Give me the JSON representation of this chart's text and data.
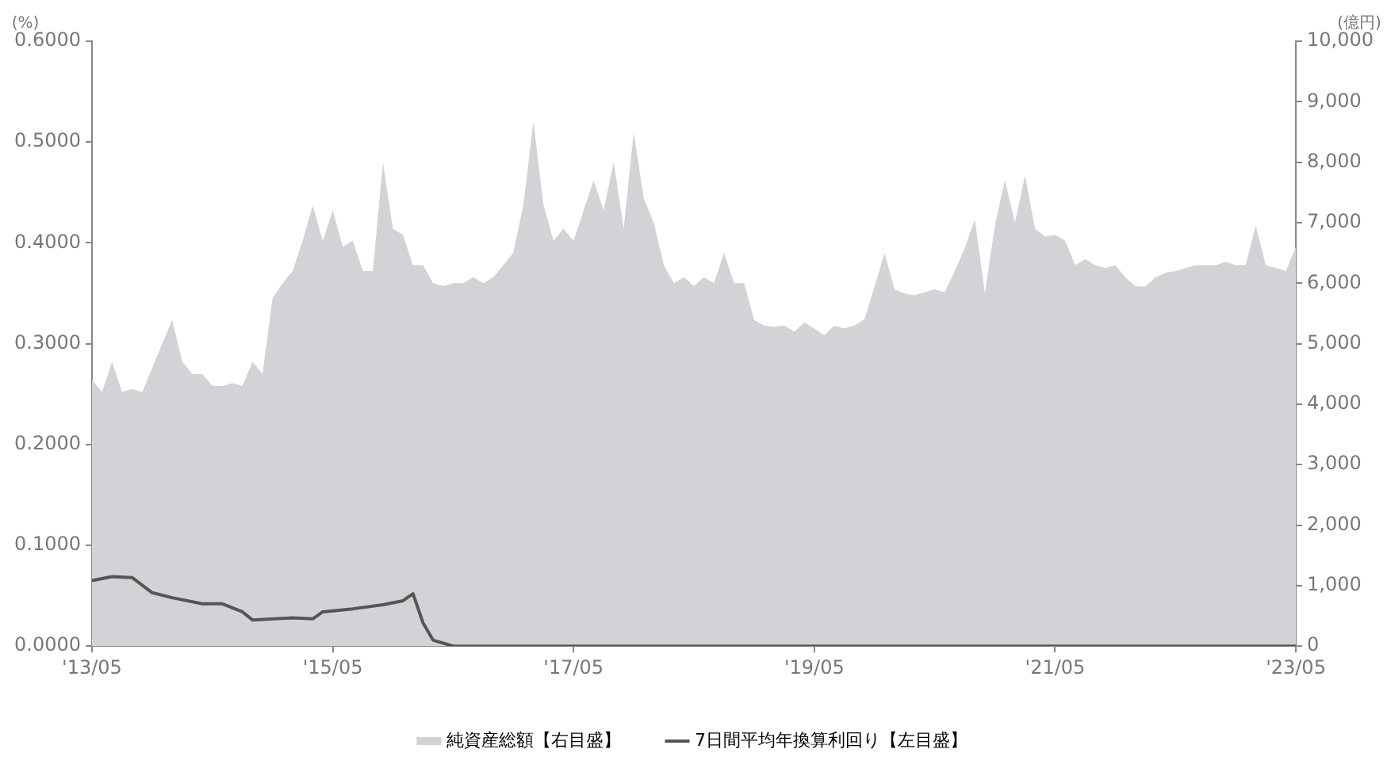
{
  "chart_data": {
    "type": "area",
    "ylabel": "(%)",
    "y2label": "(億円)",
    "x": [
      "2013-05",
      "2013-06",
      "2013-07",
      "2013-08",
      "2013-09",
      "2013-10",
      "2013-11",
      "2013-12",
      "2014-01",
      "2014-02",
      "2014-03",
      "2014-04",
      "2014-05",
      "2014-06",
      "2014-07",
      "2014-08",
      "2014-09",
      "2014-10",
      "2014-11",
      "2014-12",
      "2015-01",
      "2015-02",
      "2015-03",
      "2015-04",
      "2015-05",
      "2015-06",
      "2015-07",
      "2015-08",
      "2015-09",
      "2015-10",
      "2015-11",
      "2015-12",
      "2016-01",
      "2016-02",
      "2016-03",
      "2016-04",
      "2016-05",
      "2016-06",
      "2016-07",
      "2016-08",
      "2016-09",
      "2016-10",
      "2016-11",
      "2016-12",
      "2017-01",
      "2017-02",
      "2017-03",
      "2017-04",
      "2017-05",
      "2017-06",
      "2017-07",
      "2017-08",
      "2017-09",
      "2017-10",
      "2017-11",
      "2017-12",
      "2018-01",
      "2018-02",
      "2018-03",
      "2018-04",
      "2018-05",
      "2018-06",
      "2018-07",
      "2018-08",
      "2018-09",
      "2018-10",
      "2018-11",
      "2018-12",
      "2019-01",
      "2019-02",
      "2019-03",
      "2019-04",
      "2019-05",
      "2019-06",
      "2019-07",
      "2019-08",
      "2019-09",
      "2019-10",
      "2019-11",
      "2019-12",
      "2020-01",
      "2020-02",
      "2020-03",
      "2020-04",
      "2020-05",
      "2020-06",
      "2020-07",
      "2020-08",
      "2020-09",
      "2020-10",
      "2020-11",
      "2020-12",
      "2021-01",
      "2021-02",
      "2021-03",
      "2021-04",
      "2021-05",
      "2021-06",
      "2021-07",
      "2021-08",
      "2021-09",
      "2021-10",
      "2021-11",
      "2021-12",
      "2022-01",
      "2022-02",
      "2022-03",
      "2022-04",
      "2022-05",
      "2022-06",
      "2022-07",
      "2022-08",
      "2022-09",
      "2022-10",
      "2022-11",
      "2022-12",
      "2023-01",
      "2023-02",
      "2023-03",
      "2023-04",
      "2023-05"
    ],
    "series": [
      {
        "name": "純資産総額【右目盛】",
        "type": "area",
        "axis": "y2",
        "color": "#d2d2d7",
        "values": [
          4400,
          4200,
          4700,
          4200,
          4250,
          4200,
          4600,
          5000,
          5390,
          4700,
          4500,
          4500,
          4300,
          4300,
          4350,
          4300,
          4700,
          4500,
          5750,
          6000,
          6200,
          6700,
          7280,
          6700,
          7200,
          6600,
          6700,
          6200,
          6200,
          8000,
          6900,
          6800,
          6300,
          6300,
          6000,
          5950,
          6000,
          6000,
          6100,
          6000,
          6100,
          6300,
          6500,
          7300,
          8670,
          7300,
          6700,
          6900,
          6700,
          7200,
          7700,
          7200,
          8000,
          6900,
          8500,
          7400,
          7000,
          6300,
          6000,
          6100,
          5950,
          6100,
          6000,
          6500,
          6000,
          6000,
          5390,
          5300,
          5280,
          5300,
          5200,
          5350,
          5250,
          5140,
          5300,
          5250,
          5300,
          5400,
          5940,
          6500,
          5900,
          5830,
          5800,
          5850,
          5900,
          5850,
          6200,
          6580,
          7060,
          5830,
          6950,
          7700,
          7000,
          7780,
          6900,
          6770,
          6800,
          6700,
          6300,
          6400,
          6300,
          6250,
          6300,
          6100,
          5950,
          5940,
          6100,
          6170,
          6200,
          6250,
          6300,
          6300,
          6300,
          6350,
          6300,
          6300,
          6950,
          6300,
          6250,
          6200,
          6600
        ]
      },
      {
        "name": "7日間平均年換算利回り【左目盛】",
        "type": "line",
        "axis": "y",
        "color": "#555555",
        "x": [
          "2013-05",
          "2013-07",
          "2013-09",
          "2013-11",
          "2014-01",
          "2014-04",
          "2014-06",
          "2014-08",
          "2014-09",
          "2015-01",
          "2015-03",
          "2015-04",
          "2015-07",
          "2015-10",
          "2015-12",
          "2016-01",
          "2016-02",
          "2016-03",
          "2016-05",
          "2023-05"
        ],
        "values": [
          0.065,
          0.069,
          0.068,
          0.053,
          0.048,
          0.042,
          0.042,
          0.034,
          0.026,
          0.028,
          0.027,
          0.034,
          0.037,
          0.041,
          0.045,
          0.052,
          0.023,
          0.006,
          0,
          0
        ]
      }
    ],
    "xlim": [
      "2013-05",
      "2023-05"
    ],
    "xticks": [
      {
        "value": "2013-05",
        "label": "'13/05"
      },
      {
        "value": "2015-05",
        "label": "'15/05"
      },
      {
        "value": "2017-05",
        "label": "'17/05"
      },
      {
        "value": "2019-05",
        "label": "'19/05"
      },
      {
        "value": "2021-05",
        "label": "'21/05"
      },
      {
        "value": "2023-05",
        "label": "'23/05"
      }
    ],
    "ylim": [
      0,
      0.6
    ],
    "yticks": [
      {
        "value": 0,
        "label": "0.0000"
      },
      {
        "value": 0.1,
        "label": "0.1000"
      },
      {
        "value": 0.2,
        "label": "0.2000"
      },
      {
        "value": 0.3,
        "label": "0.3000"
      },
      {
        "value": 0.4,
        "label": "0.4000"
      },
      {
        "value": 0.5,
        "label": "0.5000"
      },
      {
        "value": 0.6,
        "label": "0.6000"
      }
    ],
    "y2lim": [
      0,
      10000
    ],
    "y2ticks": [
      0,
      {
        "value": 1000,
        "label": "1,000"
      },
      {
        "value": 2000,
        "label": "2,000"
      },
      {
        "value": 3000,
        "label": "3,000"
      },
      {
        "value": 4000,
        "label": "4,000"
      },
      {
        "value": 5000,
        "label": "5,000"
      },
      {
        "value": 6000,
        "label": "6,000"
      },
      {
        "value": 7000,
        "label": "7,000"
      },
      {
        "value": 8000,
        "label": "8,000"
      },
      {
        "value": 9000,
        "label": "9,000"
      },
      {
        "value": 10000,
        "label": "10,000"
      }
    ],
    "grid": false,
    "legend": "bottom"
  }
}
